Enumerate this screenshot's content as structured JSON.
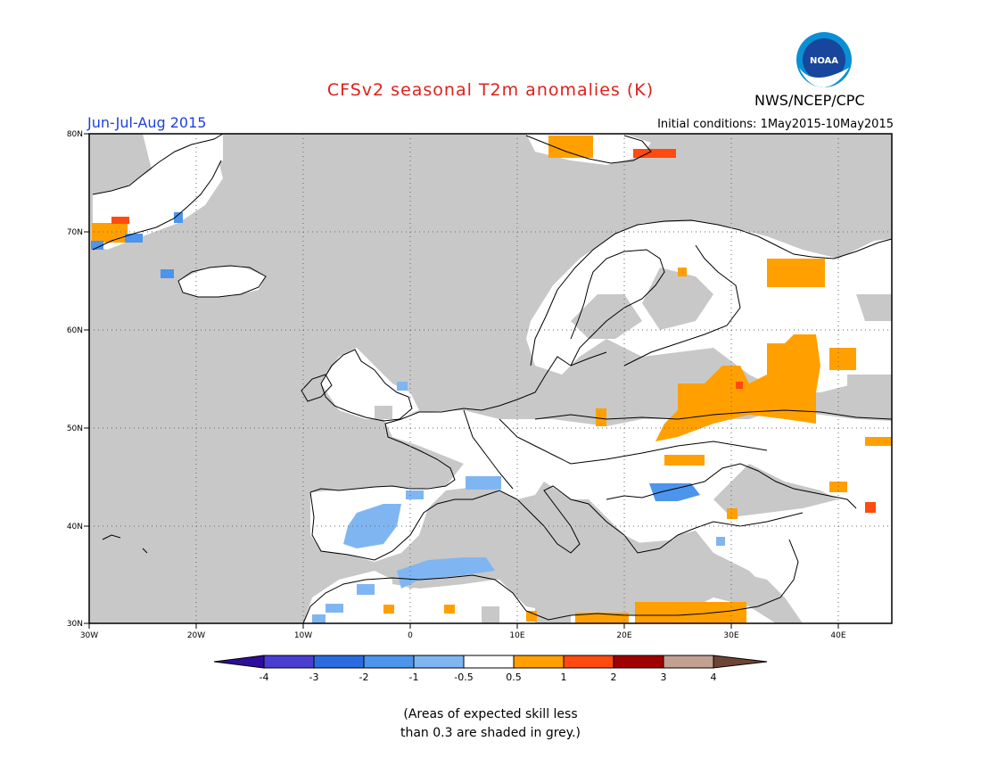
{
  "header": {
    "title": "CFSv2 seasonal T2m anomalies (K)",
    "season": "Jun-Jul-Aug 2015",
    "agency": "NWS/NCEP/CPC",
    "initial_conditions": "Initial conditions: 1May2015-10May2015",
    "logo_text": "NOAA"
  },
  "colors": {
    "title": "#e0201c",
    "season": "#1f3fe0",
    "no_skill_grey": "#c8c8c8",
    "neutral": "#ffffff",
    "minus_4": "#2e0c9c",
    "minus_3": "#4a3ed0",
    "minus_2": "#2a6ce0",
    "minus_1": "#4c94ec",
    "minus_05": "#7fb6f2",
    "plus_05": "#ffa000",
    "plus_1": "#ff4a10",
    "plus_2": "#c01212",
    "plus_3": "#a00000",
    "plus_4": "#c2a092"
  },
  "map": {
    "lat_labels": [
      "80N",
      "70N",
      "60N",
      "50N",
      "40N",
      "30N"
    ],
    "lon_labels": [
      "30W",
      "20W",
      "10W",
      "0",
      "10E",
      "20E",
      "30E",
      "40E"
    ]
  },
  "colorbar": {
    "labels": [
      "-4",
      "-3",
      "-2",
      "-1",
      "-0.5",
      "0.5",
      "1",
      "2",
      "3",
      "4"
    ]
  },
  "note": "(Areas of expected skill less\nthan 0.3 are shaded in grey.)"
}
